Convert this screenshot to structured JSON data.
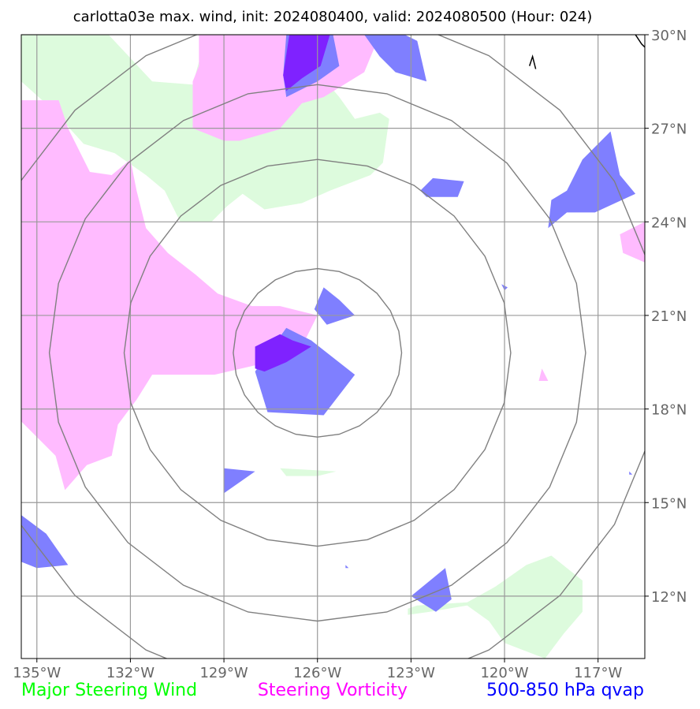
{
  "chart_data": {
    "type": "map",
    "title": "carlotta03e max. wind, init: 2024080400, valid: 2024080500 (Hour: 024)",
    "lon_range": [
      -135.5,
      -115.5
    ],
    "lat_range": [
      10,
      30
    ],
    "x_ticks": [
      {
        "value": -135,
        "label": "135°W"
      },
      {
        "value": -132,
        "label": "132°W"
      },
      {
        "value": -129,
        "label": "129°W"
      },
      {
        "value": -126,
        "label": "126°W"
      },
      {
        "value": -123,
        "label": "123°W"
      },
      {
        "value": -120,
        "label": "120°W"
      },
      {
        "value": -117,
        "label": "117°W"
      }
    ],
    "y_ticks": [
      {
        "value": 30,
        "label": "30°N"
      },
      {
        "value": 27,
        "label": "27°N"
      },
      {
        "value": 24,
        "label": "24°N"
      },
      {
        "value": 21,
        "label": "21°N"
      },
      {
        "value": 18,
        "label": "18°N"
      },
      {
        "value": 15,
        "label": "15°N"
      },
      {
        "value": 12,
        "label": "12°N"
      }
    ],
    "grid": true,
    "range_rings": {
      "center": [
        -126,
        19.8
      ],
      "radii_deg": [
        2.7,
        6.2,
        8.6,
        11.0
      ]
    },
    "legend": [
      {
        "label": "Major Steering Wind",
        "color": "#00ff00"
      },
      {
        "label": "Steering Vorticity",
        "color": "#ff00ff"
      },
      {
        "label": "500-850 hPa qvap",
        "color": "#0000ff"
      }
    ],
    "fields": {
      "wind": {
        "color": "#ddfbdd",
        "polygons": [
          [
            [
              -135.5,
              30
            ],
            [
              -132.7,
              30
            ],
            [
              -131.3,
              28.5
            ],
            [
              -130,
              28.4
            ],
            [
              -129.7,
              29.5
            ],
            [
              -128.5,
              29.5
            ],
            [
              -128.3,
              28.6
            ],
            [
              -128,
              28.5
            ],
            [
              -127.6,
              27.8
            ],
            [
              -126.9,
              28.4
            ],
            [
              -125.9,
              28.7
            ],
            [
              -125.3,
              28
            ],
            [
              -124.8,
              27.3
            ],
            [
              -124.0,
              27.5
            ],
            [
              -123.7,
              27.3
            ],
            [
              -123.9,
              25.9
            ],
            [
              -124.3,
              25.5
            ],
            [
              -125.6,
              25
            ],
            [
              -126.5,
              24.6
            ],
            [
              -127.7,
              24.4
            ],
            [
              -128.4,
              24.9
            ],
            [
              -128.9,
              24.5
            ],
            [
              -129.4,
              24.0
            ],
            [
              -130.4,
              24.0
            ],
            [
              -130.9,
              25.0
            ],
            [
              -131.5,
              25.5
            ],
            [
              -132.5,
              26.2
            ],
            [
              -133.5,
              26.5
            ],
            [
              -134.5,
              27.6
            ],
            [
              -135.5,
              28.5
            ]
          ],
          [
            [
              -127.2,
              16.1
            ],
            [
              -125.4,
              16.0
            ],
            [
              -126.0,
              15.85
            ],
            [
              -127.0,
              15.85
            ]
          ],
          [
            [
              -123.1,
              11.4
            ],
            [
              -122.4,
              11.5
            ],
            [
              -121.2,
              11.7
            ],
            [
              -120.5,
              11.2
            ],
            [
              -120.0,
              10.5
            ],
            [
              -118.7,
              10.0
            ],
            [
              -118.1,
              10.8
            ],
            [
              -117.5,
              11.5
            ],
            [
              -117.5,
              12.5
            ],
            [
              -118.5,
              13.3
            ],
            [
              -119.3,
              13.0
            ],
            [
              -120.3,
              12.3
            ],
            [
              -121.2,
              11.8
            ],
            [
              -122.8,
              11.7
            ],
            [
              -123.1,
              11.6
            ]
          ]
        ]
      },
      "vorticity": {
        "color": "#ffbbff",
        "polygons": [
          [
            [
              -135.5,
              28.7
            ],
            [
              -135.5,
              10.0
            ],
            [
              -135.5,
              27.9
            ],
            [
              -134.3,
              27.9
            ],
            [
              -134.0,
              27.0
            ],
            [
              -133.3,
              25.6
            ],
            [
              -132.6,
              25.5
            ],
            [
              -132.0,
              26.0
            ],
            [
              -131.8,
              25.0
            ],
            [
              -131.5,
              23.8
            ],
            [
              -130.8,
              23.0
            ],
            [
              -129.9,
              22.3
            ],
            [
              -129.2,
              21.7
            ],
            [
              -128.1,
              21.3
            ],
            [
              -127.2,
              21.3
            ],
            [
              -126.0,
              21.0
            ],
            [
              -126.7,
              19.6
            ],
            [
              -128.0,
              19.4
            ],
            [
              -129.3,
              19.1
            ],
            [
              -130.5,
              19.1
            ],
            [
              -131.3,
              19.1
            ],
            [
              -131.8,
              18.3
            ],
            [
              -132.4,
              17.5
            ],
            [
              -132.6,
              16.5
            ],
            [
              -133.4,
              16.2
            ],
            [
              -134.1,
              15.4
            ],
            [
              -134.4,
              16.5
            ],
            [
              -135.2,
              17.3
            ],
            [
              -135.5,
              17.6
            ]
          ],
          [
            [
              -129.8,
              30
            ],
            [
              -129.8,
              29.0
            ],
            [
              -130.0,
              28.5
            ],
            [
              -130.0,
              27.0
            ],
            [
              -129.0,
              26.6
            ],
            [
              -128.5,
              26.6
            ],
            [
              -127.1,
              27.0
            ],
            [
              -127.2,
              27.0
            ],
            [
              -126.5,
              27.8
            ],
            [
              -125.8,
              28.0
            ],
            [
              -124.5,
              28.8
            ],
            [
              -124.0,
              30.0
            ]
          ],
          [
            [
              -115.5,
              24.0
            ],
            [
              -116.3,
              23.6
            ],
            [
              -116.2,
              23.0
            ],
            [
              -115.5,
              22.7
            ]
          ],
          [
            [
              -118.8,
              19.3
            ],
            [
              -118.6,
              18.9
            ],
            [
              -118.9,
              18.9
            ]
          ]
        ]
      },
      "qvap": {
        "color": "#7f7fff",
        "polygons": [
          [
            [
              -127.0,
              20.6
            ],
            [
              -126.2,
              20.2
            ],
            [
              -124.8,
              19.1
            ],
            [
              -125.8,
              17.8
            ],
            [
              -127.6,
              17.9
            ],
            [
              -128.0,
              19.2
            ]
          ],
          [
            [
              -125.8,
              21.9
            ],
            [
              -125.3,
              21.5
            ],
            [
              -124.8,
              21.0
            ],
            [
              -125.7,
              20.7
            ],
            [
              -126.1,
              21.2
            ]
          ],
          [
            [
              -127.0,
              30
            ],
            [
              -125.5,
              30
            ],
            [
              -125.3,
              29.0
            ],
            [
              -126.0,
              28.5
            ],
            [
              -127.0,
              28.0
            ],
            [
              -127.1,
              28.7
            ]
          ],
          [
            [
              -124.5,
              30
            ],
            [
              -123.2,
              30
            ],
            [
              -122.8,
              29.8
            ],
            [
              -122.5,
              28.5
            ],
            [
              -123.5,
              28.8
            ],
            [
              -124.0,
              29.3
            ]
          ],
          [
            [
              -122.3,
              25.4
            ],
            [
              -121.3,
              25.3
            ],
            [
              -121.5,
              24.8
            ],
            [
              -122.5,
              24.8
            ],
            [
              -122.7,
              25.0
            ]
          ],
          [
            [
              -116.6,
              26.9
            ],
            [
              -116.3,
              25.5
            ],
            [
              -115.8,
              24.9
            ],
            [
              -117.1,
              24.3
            ],
            [
              -118.0,
              24.3
            ],
            [
              -118.6,
              23.8
            ],
            [
              -118.5,
              24.7
            ],
            [
              -118.0,
              25.0
            ],
            [
              -117.5,
              26.0
            ]
          ],
          [
            [
              -129.0,
              16.1
            ],
            [
              -128.0,
              16.0
            ],
            [
              -129.0,
              15.3
            ]
          ],
          [
            [
              -135.5,
              14.6
            ],
            [
              -134.7,
              14.0
            ],
            [
              -134.0,
              13.0
            ],
            [
              -135.0,
              12.9
            ],
            [
              -135.5,
              13.1
            ]
          ],
          [
            [
              -121.9,
              12.9
            ],
            [
              -121.7,
              11.9
            ],
            [
              -122.2,
              11.5
            ],
            [
              -123.0,
              12.0
            ]
          ],
          [
            [
              -120.1,
              22.0
            ],
            [
              -119.9,
              21.9
            ],
            [
              -120.0,
              21.8
            ]
          ],
          [
            [
              -125.1,
              13.0
            ],
            [
              -125.0,
              12.9
            ],
            [
              -125.1,
              12.9
            ]
          ],
          [
            [
              -116.0,
              16.0
            ],
            [
              -115.9,
              15.9
            ],
            [
              -116.0,
              15.9
            ]
          ]
        ]
      },
      "overlap": {
        "color": "#7f22ff",
        "polygons": [
          [
            [
              -127.2,
              20.4
            ],
            [
              -126.8,
              20.2
            ],
            [
              -126.2,
              20.0
            ],
            [
              -127.0,
              19.5
            ],
            [
              -127.7,
              19.2
            ],
            [
              -128.0,
              19.3
            ],
            [
              -128.0,
              20.0
            ]
          ],
          [
            [
              -126.9,
              30
            ],
            [
              -125.6,
              30
            ],
            [
              -125.9,
              29.0
            ],
            [
              -126.5,
              28.6
            ],
            [
              -127.0,
              28.2
            ],
            [
              -127.1,
              28.7
            ]
          ]
        ]
      }
    },
    "coastline": [
      [
        [
          -119.2,
          29.0
        ],
        [
          -119.1,
          29.3
        ],
        [
          -119.0,
          28.9
        ]
      ],
      [
        [
          -115.8,
          30.0
        ],
        [
          -115.6,
          29.7
        ],
        [
          -115.5,
          29.6
        ]
      ]
    ]
  }
}
